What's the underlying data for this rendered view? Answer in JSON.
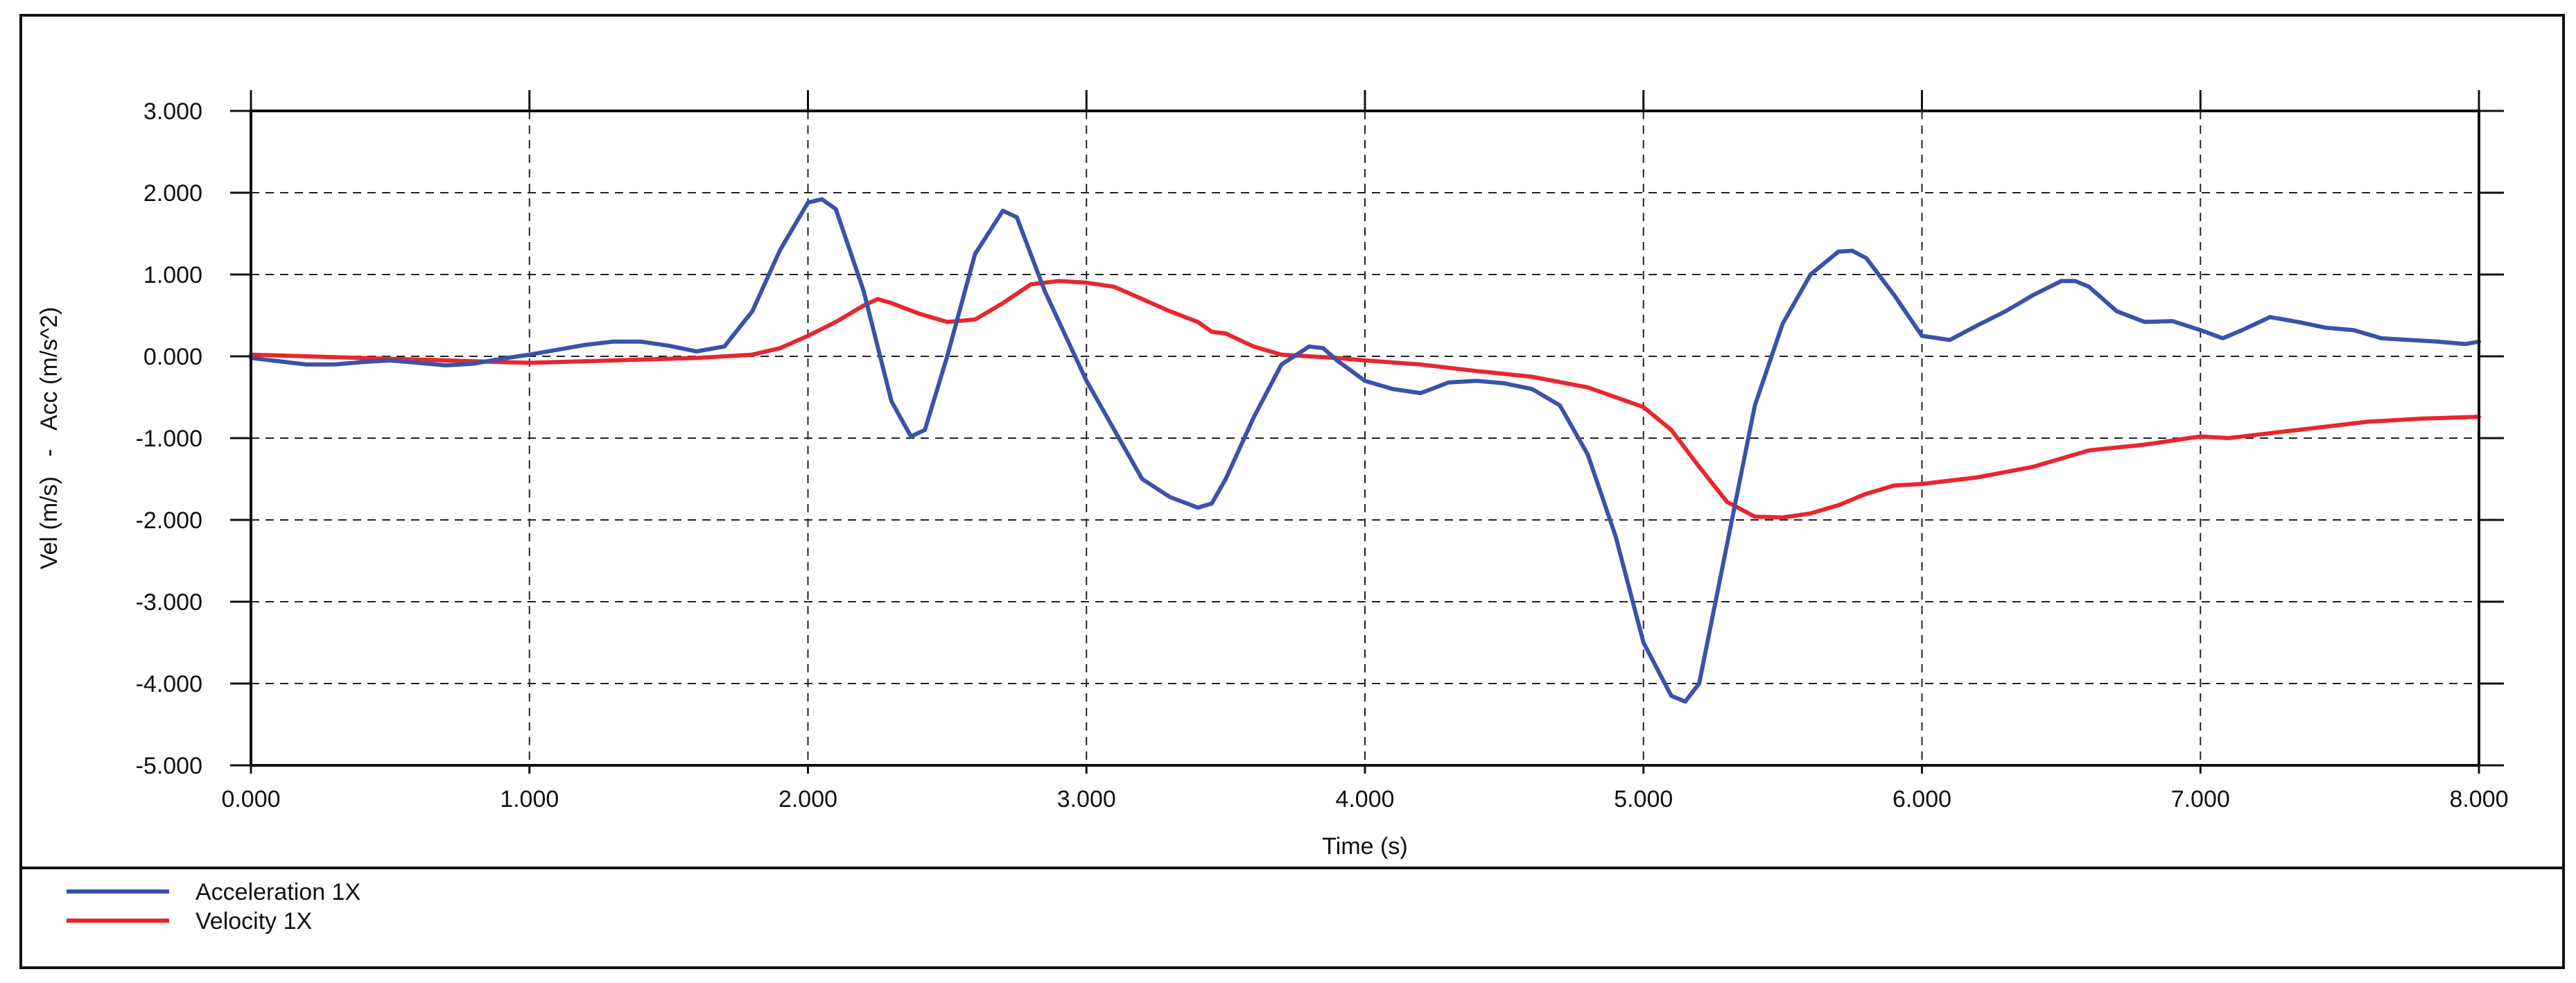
{
  "chart_data": {
    "type": "line",
    "xlabel": "Time (s)",
    "ylabel": "Vel (m/s)   -   Acc (m/s^2)",
    "xlim": [
      0,
      8
    ],
    "ylim": [
      -5,
      3
    ],
    "grid": true,
    "legend_position": "bottom-left",
    "x_ticks": [
      "0.000",
      "1.000",
      "2.000",
      "3.000",
      "4.000",
      "5.000",
      "6.000",
      "7.000",
      "8.000"
    ],
    "y_ticks": [
      "3.000",
      "2.000",
      "1.000",
      "0.000",
      "-1.000",
      "-2.000",
      "-3.000",
      "-4.000",
      "-5.000"
    ],
    "series": [
      {
        "name": "Acceleration 1X",
        "color": "#3a52a8",
        "points": [
          [
            0.0,
            -0.02
          ],
          [
            0.1,
            -0.06
          ],
          [
            0.2,
            -0.1
          ],
          [
            0.3,
            -0.1
          ],
          [
            0.4,
            -0.07
          ],
          [
            0.5,
            -0.05
          ],
          [
            0.6,
            -0.08
          ],
          [
            0.7,
            -0.11
          ],
          [
            0.8,
            -0.09
          ],
          [
            0.9,
            -0.03
          ],
          [
            1.0,
            0.02
          ],
          [
            1.1,
            0.08
          ],
          [
            1.2,
            0.14
          ],
          [
            1.3,
            0.18
          ],
          [
            1.4,
            0.18
          ],
          [
            1.5,
            0.13
          ],
          [
            1.6,
            0.06
          ],
          [
            1.7,
            0.12
          ],
          [
            1.8,
            0.55
          ],
          [
            1.9,
            1.3
          ],
          [
            2.0,
            1.88
          ],
          [
            2.05,
            1.92
          ],
          [
            2.1,
            1.8
          ],
          [
            2.2,
            0.8
          ],
          [
            2.3,
            -0.55
          ],
          [
            2.37,
            -0.98
          ],
          [
            2.42,
            -0.9
          ],
          [
            2.5,
            0.0
          ],
          [
            2.6,
            1.25
          ],
          [
            2.7,
            1.78
          ],
          [
            2.75,
            1.7
          ],
          [
            2.85,
            0.8
          ],
          [
            3.0,
            -0.3
          ],
          [
            3.1,
            -0.9
          ],
          [
            3.2,
            -1.5
          ],
          [
            3.3,
            -1.72
          ],
          [
            3.4,
            -1.85
          ],
          [
            3.45,
            -1.8
          ],
          [
            3.5,
            -1.5
          ],
          [
            3.6,
            -0.75
          ],
          [
            3.7,
            -0.1
          ],
          [
            3.8,
            0.12
          ],
          [
            3.85,
            0.1
          ],
          [
            3.9,
            -0.05
          ],
          [
            4.0,
            -0.3
          ],
          [
            4.1,
            -0.4
          ],
          [
            4.2,
            -0.45
          ],
          [
            4.3,
            -0.32
          ],
          [
            4.4,
            -0.3
          ],
          [
            4.5,
            -0.33
          ],
          [
            4.6,
            -0.4
          ],
          [
            4.7,
            -0.6
          ],
          [
            4.8,
            -1.2
          ],
          [
            4.9,
            -2.2
          ],
          [
            5.0,
            -3.5
          ],
          [
            5.1,
            -4.15
          ],
          [
            5.15,
            -4.22
          ],
          [
            5.2,
            -4.0
          ],
          [
            5.3,
            -2.3
          ],
          [
            5.4,
            -0.6
          ],
          [
            5.5,
            0.4
          ],
          [
            5.6,
            1.0
          ],
          [
            5.7,
            1.28
          ],
          [
            5.75,
            1.29
          ],
          [
            5.8,
            1.2
          ],
          [
            5.9,
            0.75
          ],
          [
            6.0,
            0.25
          ],
          [
            6.1,
            0.2
          ],
          [
            6.2,
            0.38
          ],
          [
            6.3,
            0.55
          ],
          [
            6.4,
            0.75
          ],
          [
            6.5,
            0.92
          ],
          [
            6.55,
            0.92
          ],
          [
            6.6,
            0.85
          ],
          [
            6.7,
            0.55
          ],
          [
            6.8,
            0.42
          ],
          [
            6.9,
            0.43
          ],
          [
            7.0,
            0.32
          ],
          [
            7.08,
            0.22
          ],
          [
            7.15,
            0.32
          ],
          [
            7.25,
            0.48
          ],
          [
            7.35,
            0.42
          ],
          [
            7.45,
            0.35
          ],
          [
            7.55,
            0.32
          ],
          [
            7.65,
            0.22
          ],
          [
            7.75,
            0.2
          ],
          [
            7.85,
            0.18
          ],
          [
            7.95,
            0.15
          ],
          [
            8.0,
            0.18
          ]
        ]
      },
      {
        "name": "Velocity 1X",
        "color": "#e8262e",
        "points": [
          [
            0.0,
            0.02
          ],
          [
            0.2,
            0.0
          ],
          [
            0.4,
            -0.02
          ],
          [
            0.6,
            -0.04
          ],
          [
            0.8,
            -0.06
          ],
          [
            1.0,
            -0.08
          ],
          [
            1.2,
            -0.06
          ],
          [
            1.4,
            -0.04
          ],
          [
            1.6,
            -0.02
          ],
          [
            1.8,
            0.02
          ],
          [
            1.9,
            0.1
          ],
          [
            2.0,
            0.25
          ],
          [
            2.1,
            0.42
          ],
          [
            2.2,
            0.62
          ],
          [
            2.25,
            0.7
          ],
          [
            2.3,
            0.65
          ],
          [
            2.4,
            0.52
          ],
          [
            2.5,
            0.42
          ],
          [
            2.6,
            0.45
          ],
          [
            2.7,
            0.65
          ],
          [
            2.8,
            0.88
          ],
          [
            2.9,
            0.92
          ],
          [
            3.0,
            0.9
          ],
          [
            3.1,
            0.85
          ],
          [
            3.2,
            0.7
          ],
          [
            3.3,
            0.55
          ],
          [
            3.4,
            0.42
          ],
          [
            3.45,
            0.3
          ],
          [
            3.5,
            0.28
          ],
          [
            3.6,
            0.12
          ],
          [
            3.7,
            0.02
          ],
          [
            3.8,
            0.0
          ],
          [
            3.9,
            -0.02
          ],
          [
            4.0,
            -0.05
          ],
          [
            4.2,
            -0.1
          ],
          [
            4.4,
            -0.18
          ],
          [
            4.6,
            -0.25
          ],
          [
            4.8,
            -0.38
          ],
          [
            5.0,
            -0.62
          ],
          [
            5.1,
            -0.9
          ],
          [
            5.2,
            -1.35
          ],
          [
            5.3,
            -1.78
          ],
          [
            5.4,
            -1.96
          ],
          [
            5.5,
            -1.97
          ],
          [
            5.6,
            -1.92
          ],
          [
            5.7,
            -1.82
          ],
          [
            5.8,
            -1.68
          ],
          [
            5.9,
            -1.58
          ],
          [
            6.0,
            -1.56
          ],
          [
            6.2,
            -1.48
          ],
          [
            6.4,
            -1.35
          ],
          [
            6.6,
            -1.15
          ],
          [
            6.8,
            -1.08
          ],
          [
            7.0,
            -0.98
          ],
          [
            7.1,
            -1.0
          ],
          [
            7.2,
            -0.96
          ],
          [
            7.4,
            -0.88
          ],
          [
            7.6,
            -0.8
          ],
          [
            7.8,
            -0.76
          ],
          [
            8.0,
            -0.74
          ]
        ]
      }
    ]
  }
}
